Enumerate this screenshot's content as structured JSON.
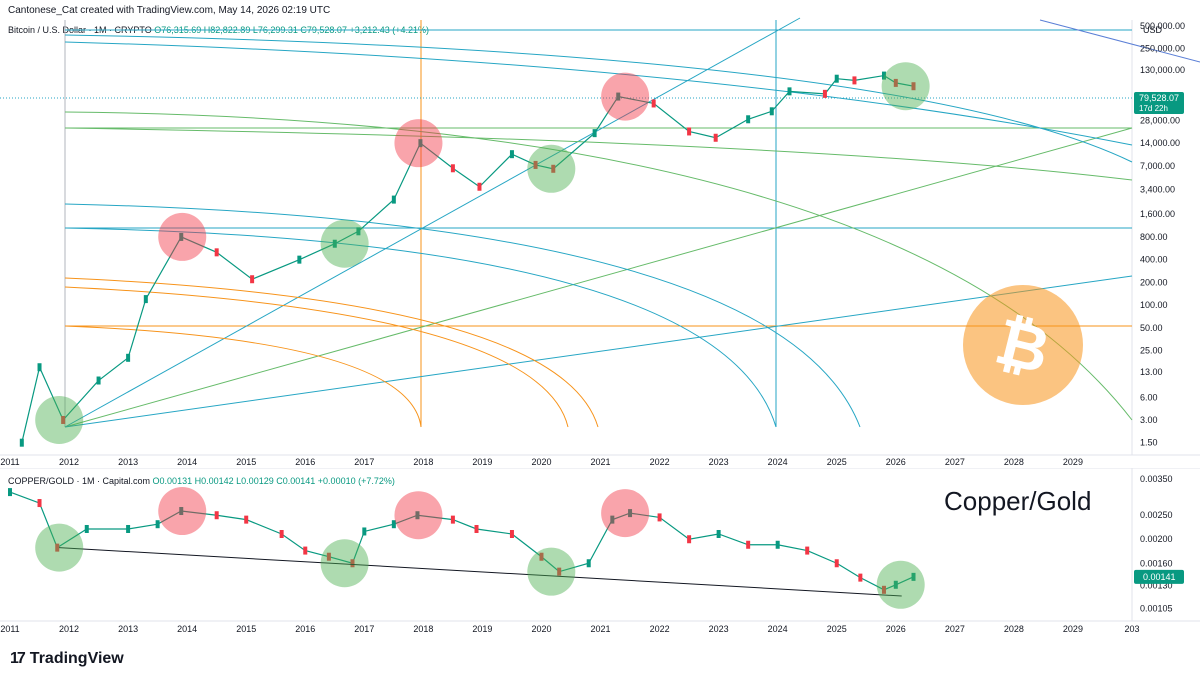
{
  "header": {
    "credit": "Cantonese_Cat created with TradingView.com, May 14, 2026 02:19 UTC"
  },
  "btc": {
    "symbol": "Bitcoin / U.S. Dollar · 1M · CRYPTO",
    "ohlc": {
      "o": "O76,315.69",
      "h": "H82,822.89",
      "l": "L76,299.31",
      "c": "C79,528.07",
      "chg": "+3,212.43 (+4.21%)"
    },
    "currency": "USD",
    "price_label": "79,528.07",
    "countdown": "17d 22h"
  },
  "cg": {
    "symbol": "COPPER/GOLD · 1M · Capital.com",
    "ohlc": {
      "o": "O0.00131",
      "h": "H0.00142",
      "l": "L0.00129",
      "c": "C0.00141",
      "chg": "+0.00010 (+7.72%)"
    },
    "title": "Copper/Gold",
    "price_label": "0.00141"
  },
  "brand": "TradingView",
  "colors": {
    "up": "#089981",
    "down": "#f23645",
    "orange": "#f7931a",
    "teal": "#26a6c4",
    "green_circle": "#4caf50",
    "red_circle": "#f23645"
  },
  "chart_data": [
    {
      "type": "line",
      "title": "Bitcoin / U.S. Dollar · 1M · CRYPTO",
      "scale": "log",
      "x_ticks": [
        "2011",
        "2012",
        "2013",
        "2014",
        "2015",
        "2016",
        "2017",
        "2018",
        "2019",
        "2020",
        "2021",
        "2022",
        "2023",
        "2024",
        "2025",
        "2026",
        "2027",
        "2028",
        "2029"
      ],
      "y_ticks": [
        "500,000.00",
        "250,000.00",
        "130,000.00",
        "28,000.00",
        "14,000.00",
        "7,000.00",
        "3,400.00",
        "1,600.00",
        "800.00",
        "400.00",
        "200.00",
        "100.00",
        "50.00",
        "25.00",
        "13.00",
        "6.00",
        "3.00",
        "1.50"
      ],
      "series": [
        {
          "x": [
            2011.2,
            2011.5,
            2011.9,
            2012.5,
            2013.0,
            2013.3,
            2013.9,
            2014.5,
            2015.1,
            2015.9,
            2016.5,
            2016.9,
            2017.5,
            2017.95,
            2018.5,
            2018.95,
            2019.5,
            2019.9,
            2020.2,
            2020.9,
            2021.3,
            2021.9,
            2022.5,
            2022.95,
            2023.5,
            2023.9,
            2024.2,
            2024.8,
            2025.0,
            2025.3,
            2025.8,
            2026.0,
            2026.3
          ],
          "values": [
            1.5,
            15,
            3,
            10,
            20,
            120,
            800,
            500,
            220,
            400,
            650,
            950,
            2500,
            14000,
            6500,
            3700,
            10000,
            7200,
            6400,
            19000,
            58000,
            47000,
            20000,
            16500,
            29000,
            37000,
            68000,
            63000,
            100000,
            95000,
            110000,
            88000,
            79528
          ]
        }
      ],
      "annotations": {
        "red_circles": [
          "2013-12",
          "2017-12",
          "2021-06"
        ],
        "green_circles": [
          "2011-11",
          "2016-09",
          "2020-03",
          "2026-03"
        ]
      }
    },
    {
      "type": "line",
      "title": "COPPER/GOLD · 1M · Capital.com",
      "x_ticks": [
        "2011",
        "2012",
        "2013",
        "2014",
        "2015",
        "2016",
        "2017",
        "2018",
        "2019",
        "2020",
        "2021",
        "2022",
        "2023",
        "2024",
        "2025",
        "2026",
        "2027",
        "2028",
        "2029",
        "203"
      ],
      "y_ticks": [
        "0.00350",
        "0.00250",
        "0.00200",
        "0.00160",
        "0.00130",
        "0.00105"
      ],
      "series": [
        {
          "x": [
            2011.0,
            2011.5,
            2011.8,
            2012.3,
            2013.0,
            2013.5,
            2013.9,
            2014.5,
            2015.0,
            2015.6,
            2016.0,
            2016.4,
            2016.8,
            2017.0,
            2017.5,
            2017.9,
            2018.5,
            2018.9,
            2019.5,
            2020.0,
            2020.3,
            2020.8,
            2021.2,
            2021.5,
            2022.0,
            2022.5,
            2023.0,
            2023.5,
            2024.0,
            2024.5,
            2025.0,
            2025.4,
            2025.8,
            2026.0,
            2026.3
          ],
          "values": [
            0.0031,
            0.0028,
            0.00185,
            0.0022,
            0.0022,
            0.0023,
            0.0026,
            0.0025,
            0.0024,
            0.0021,
            0.0018,
            0.0017,
            0.0016,
            0.00215,
            0.0023,
            0.0025,
            0.0024,
            0.0022,
            0.0021,
            0.0017,
            0.00148,
            0.0016,
            0.0024,
            0.00255,
            0.00245,
            0.002,
            0.0021,
            0.0019,
            0.0019,
            0.0018,
            0.0016,
            0.0014,
            0.00125,
            0.00131,
            0.00141
          ]
        }
      ],
      "annotations": {
        "red_circles": [
          "2013-12",
          "2017-12",
          "2021-06"
        ],
        "green_circles": [
          "2011-11",
          "2016-09",
          "2020-03",
          "2026-02"
        ],
        "support_line": "2011-11 to 2026-02"
      }
    }
  ]
}
